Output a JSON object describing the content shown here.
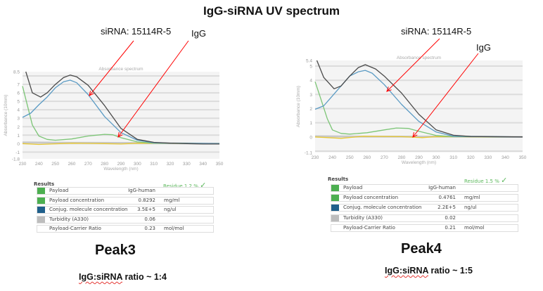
{
  "title": "IgG-siRNA UV spectrum",
  "colors": {
    "total": "#4a4a4a",
    "sirna": "#5b9bc4",
    "igg": "#7cc576",
    "yellow": "#e8c832",
    "gray": "#c8c8c8",
    "arrow": "#ff0000",
    "payload": "#4caf50",
    "conjug": "#1f5f8b",
    "turbidity": "#bdbdbd",
    "residue": "#5cb85c"
  },
  "panels": [
    {
      "annotations": {
        "sirna": "siRNA: 15114R-5",
        "igg": "IgG"
      },
      "peak": "Peak3",
      "ratio_label": "IgG:siRNA",
      "ratio_value": " ratio ~ 1:4",
      "results": {
        "title": "Results",
        "residue": "Residue 1.2 %",
        "check_icon": "check-icon",
        "rows": [
          {
            "label": "Payload",
            "value": "IgG-human",
            "unit": "",
            "swatch": "payload"
          },
          {
            "label": "Payload concentration",
            "value": "0.8292",
            "unit": "mg/ml",
            "swatch": "payload"
          },
          {
            "label": "Conjug. molecule concentration",
            "value": "3.5E+5",
            "unit": "ng/ul",
            "swatch": "conjug"
          },
          {
            "label": "Turbidity (A330)",
            "value": "0.06",
            "unit": "",
            "swatch": "turbidity"
          },
          {
            "label": "Payload-Carrier Ratio",
            "value": "0.23",
            "unit": "mol/mol",
            "swatch": ""
          }
        ]
      }
    },
    {
      "annotations": {
        "sirna": "siRNA: 15114R-5",
        "igg": "IgG"
      },
      "peak": "Peak4",
      "ratio_label": "IgG:siRNA",
      "ratio_value": " ratio ~ 1:5",
      "results": {
        "title": "Results",
        "residue": "Residue 1.5 %",
        "check_icon": "check-icon",
        "rows": [
          {
            "label": "Payload",
            "value": "IgG-human",
            "unit": "",
            "swatch": "payload"
          },
          {
            "label": "Payload concentration",
            "value": "0.4761",
            "unit": "mg/ml",
            "swatch": "payload"
          },
          {
            "label": "Conjug. molecule concentration",
            "value": "2.2E+5",
            "unit": "ng/ul",
            "swatch": "conjug"
          },
          {
            "label": "Turbidity (A330)",
            "value": "0.02",
            "unit": "",
            "swatch": "turbidity"
          },
          {
            "label": "Payload-Carrier Ratio",
            "value": "0.21",
            "unit": "mol/mol",
            "swatch": ""
          }
        ]
      }
    }
  ],
  "chart_data": [
    {
      "type": "line",
      "title": "Absorbance spectrum",
      "xlabel": "Wavelength (nm)",
      "ylabel": "Absorbance (10mm)",
      "xlim": [
        230,
        350
      ],
      "ylim": [
        -1.8,
        8.5
      ],
      "grid": true,
      "xticks": [
        230,
        240,
        250,
        260,
        270,
        280,
        290,
        300,
        310,
        320,
        330,
        340,
        350
      ],
      "yticks": [
        "8.5",
        "7",
        "6",
        "5",
        "4",
        "3",
        "2",
        "1",
        "0",
        "-1",
        "-1.8"
      ],
      "series": [
        {
          "color": "gray",
          "points": [
            [
              230,
              0.15
            ],
            [
              260,
              0.1
            ],
            [
              300,
              0.08
            ],
            [
              350,
              0
            ]
          ]
        },
        {
          "color": "yellow",
          "points": [
            [
              230,
              0
            ],
            [
              240,
              -0.1
            ],
            [
              260,
              0.05
            ],
            [
              280,
              0
            ],
            [
              290,
              -0.05
            ],
            [
              300,
              0.05
            ],
            [
              350,
              0
            ]
          ]
        },
        {
          "color": "igg",
          "points": [
            [
              230,
              6.8
            ],
            [
              233,
              4.5
            ],
            [
              236,
              2.2
            ],
            [
              240,
              0.9
            ],
            [
              245,
              0.5
            ],
            [
              250,
              0.4
            ],
            [
              260,
              0.55
            ],
            [
              270,
              0.9
            ],
            [
              280,
              1.1
            ],
            [
              285,
              1.05
            ],
            [
              290,
              0.7
            ],
            [
              300,
              0.2
            ],
            [
              310,
              0.05
            ],
            [
              350,
              0
            ]
          ]
        },
        {
          "color": "sirna",
          "points": [
            [
              230,
              3.1
            ],
            [
              235,
              3.6
            ],
            [
              240,
              4.6
            ],
            [
              245,
              5.5
            ],
            [
              250,
              6.6
            ],
            [
              255,
              7.3
            ],
            [
              259,
              7.5
            ],
            [
              263,
              7.2
            ],
            [
              270,
              5.8
            ],
            [
              280,
              3.2
            ],
            [
              290,
              1.3
            ],
            [
              300,
              0.4
            ],
            [
              310,
              0.1
            ],
            [
              320,
              0.05
            ],
            [
              350,
              0
            ]
          ]
        },
        {
          "color": "total",
          "points": [
            [
              232,
              8.5
            ],
            [
              236,
              6
            ],
            [
              241,
              5.5
            ],
            [
              245,
              6
            ],
            [
              250,
              7
            ],
            [
              255,
              7.8
            ],
            [
              259,
              8.1
            ],
            [
              263,
              7.9
            ],
            [
              270,
              6.9
            ],
            [
              280,
              4.5
            ],
            [
              290,
              1.8
            ],
            [
              300,
              0.5
            ],
            [
              310,
              0.15
            ],
            [
              320,
              0.05
            ],
            [
              330,
              0
            ],
            [
              340,
              -0.05
            ],
            [
              350,
              -0.05
            ]
          ]
        }
      ]
    },
    {
      "type": "line",
      "title": "Absorbance spectrum",
      "xlabel": "Wavelength (nm)",
      "ylabel": "Absorbance (10mm)",
      "xlim": [
        230,
        350
      ],
      "ylim": [
        -1.1,
        5.4
      ],
      "grid": true,
      "xticks": [
        230,
        240,
        250,
        260,
        270,
        280,
        290,
        300,
        310,
        320,
        330,
        340,
        350
      ],
      "yticks": [
        "5.4",
        "5",
        "4",
        "3",
        "2",
        "1",
        "0",
        "-1.1"
      ],
      "series": [
        {
          "color": "gray",
          "points": [
            [
              230,
              0.05
            ],
            [
              260,
              0.03
            ],
            [
              300,
              0.03
            ],
            [
              350,
              0
            ]
          ]
        },
        {
          "color": "yellow",
          "points": [
            [
              230,
              0
            ],
            [
              245,
              -0.1
            ],
            [
              258,
              0.05
            ],
            [
              280,
              0.02
            ],
            [
              292,
              -0.05
            ],
            [
              300,
              0.02
            ],
            [
              350,
              0
            ]
          ]
        },
        {
          "color": "igg",
          "points": [
            [
              230,
              3.9
            ],
            [
              233,
              2.8
            ],
            [
              237,
              1.3
            ],
            [
              240,
              0.5
            ],
            [
              245,
              0.25
            ],
            [
              250,
              0.2
            ],
            [
              260,
              0.3
            ],
            [
              270,
              0.5
            ],
            [
              277,
              0.63
            ],
            [
              284,
              0.6
            ],
            [
              290,
              0.4
            ],
            [
              300,
              0.1
            ],
            [
              310,
              0.02
            ],
            [
              350,
              0
            ]
          ]
        },
        {
          "color": "sirna",
          "points": [
            [
              230,
              1.95
            ],
            [
              235,
              2.2
            ],
            [
              240,
              2.9
            ],
            [
              245,
              3.6
            ],
            [
              250,
              4.3
            ],
            [
              255,
              4.6
            ],
            [
              259,
              4.7
            ],
            [
              263,
              4.5
            ],
            [
              270,
              3.7
            ],
            [
              280,
              2.3
            ],
            [
              290,
              1.1
            ],
            [
              300,
              0.35
            ],
            [
              310,
              0.05
            ],
            [
              350,
              0
            ]
          ]
        },
        {
          "color": "total",
          "points": [
            [
              231,
              5.4
            ],
            [
              235,
              4.2
            ],
            [
              241,
              3.4
            ],
            [
              245,
              3.6
            ],
            [
              250,
              4.3
            ],
            [
              255,
              4.9
            ],
            [
              259,
              5.1
            ],
            [
              265,
              4.8
            ],
            [
              270,
              4.3
            ],
            [
              280,
              3.1
            ],
            [
              290,
              1.6
            ],
            [
              300,
              0.5
            ],
            [
              310,
              0.12
            ],
            [
              320,
              0.03
            ],
            [
              350,
              0
            ]
          ]
        }
      ]
    }
  ]
}
